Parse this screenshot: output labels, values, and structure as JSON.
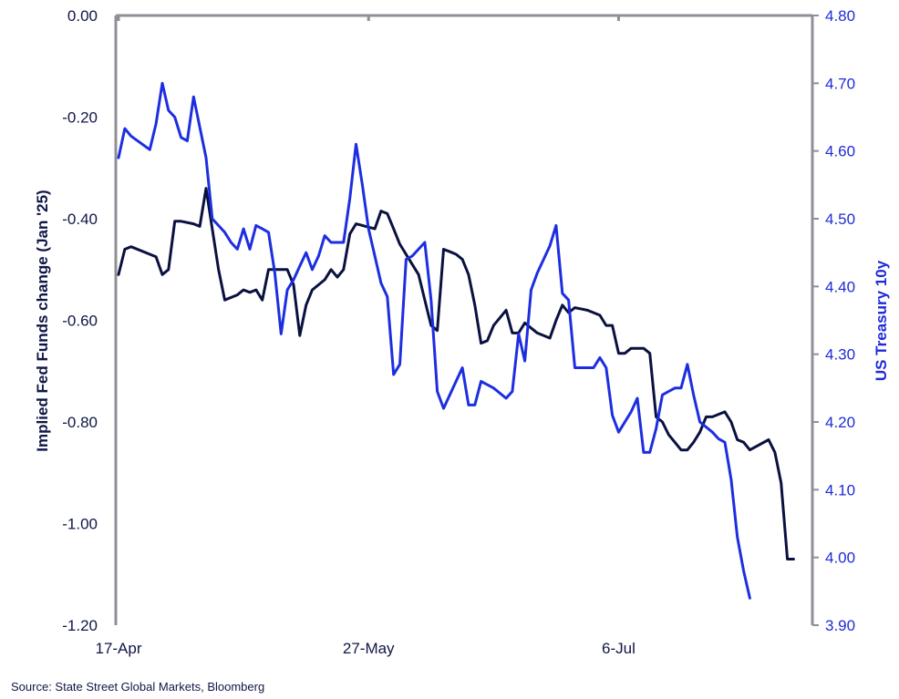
{
  "chart_data": {
    "type": "line",
    "title": "",
    "y_left_label": "Implied Fed Funds change (Jan '25)",
    "y_right_label": "US Treasury 10y",
    "y_left_range": [
      -1.2,
      0.0
    ],
    "y_right_range": [
      3.9,
      4.8
    ],
    "y_left_ticks": [
      "0.00",
      "-0.20",
      "-0.40",
      "-0.60",
      "-0.80",
      "-1.00",
      "-1.20"
    ],
    "y_right_ticks": [
      "4.80",
      "4.70",
      "4.60",
      "4.50",
      "4.40",
      "4.30",
      "4.20",
      "4.10",
      "4.00",
      "3.90"
    ],
    "x_ticks": [
      {
        "label": "17-Apr",
        "day": 0
      },
      {
        "label": "27-May",
        "day": 40
      },
      {
        "label": "6-Jul",
        "day": 80
      }
    ],
    "x_range_days": [
      0,
      111
    ],
    "grid": false,
    "colors": {
      "left_axis": "#0f1646",
      "right_axis": "#1f2bd8",
      "axis_line": "#8f8f98"
    },
    "series": [
      {
        "axis": "left",
        "color": "#0a1140",
        "points": [
          [
            0,
            -0.51
          ],
          [
            1,
            -0.46
          ],
          [
            2,
            -0.455
          ],
          [
            5,
            -0.47
          ],
          [
            6,
            -0.475
          ],
          [
            7,
            -0.51
          ],
          [
            8,
            -0.5
          ],
          [
            9,
            -0.405
          ],
          [
            10,
            -0.405
          ],
          [
            12,
            -0.41
          ],
          [
            13,
            -0.415
          ],
          [
            14,
            -0.34
          ],
          [
            15,
            -0.42
          ],
          [
            16,
            -0.5
          ],
          [
            17,
            -0.56
          ],
          [
            19,
            -0.55
          ],
          [
            20,
            -0.54
          ],
          [
            21,
            -0.545
          ],
          [
            22,
            -0.54
          ],
          [
            23,
            -0.56
          ],
          [
            24,
            -0.5
          ],
          [
            27,
            -0.5
          ],
          [
            28,
            -0.53
          ],
          [
            29,
            -0.63
          ],
          [
            30,
            -0.57
          ],
          [
            31,
            -0.54
          ],
          [
            33,
            -0.52
          ],
          [
            34,
            -0.5
          ],
          [
            35,
            -0.515
          ],
          [
            36,
            -0.5
          ],
          [
            37,
            -0.43
          ],
          [
            38,
            -0.41
          ],
          [
            41,
            -0.42
          ],
          [
            42,
            -0.385
          ],
          [
            43,
            -0.39
          ],
          [
            44,
            -0.42
          ],
          [
            45,
            -0.45
          ],
          [
            47,
            -0.49
          ],
          [
            48,
            -0.51
          ],
          [
            49,
            -0.56
          ],
          [
            50,
            -0.61
          ],
          [
            51,
            -0.62
          ],
          [
            52,
            -0.46
          ],
          [
            53,
            -0.465
          ],
          [
            54,
            -0.47
          ],
          [
            55,
            -0.48
          ],
          [
            56,
            -0.51
          ],
          [
            57,
            -0.57
          ],
          [
            58,
            -0.645
          ],
          [
            59,
            -0.64
          ],
          [
            60,
            -0.61
          ],
          [
            62,
            -0.58
          ],
          [
            63,
            -0.625
          ],
          [
            64,
            -0.625
          ],
          [
            65,
            -0.605
          ],
          [
            66,
            -0.615
          ],
          [
            67,
            -0.625
          ],
          [
            69,
            -0.635
          ],
          [
            70,
            -0.6
          ],
          [
            71,
            -0.57
          ],
          [
            72,
            -0.585
          ],
          [
            73,
            -0.575
          ],
          [
            75,
            -0.58
          ],
          [
            77,
            -0.59
          ],
          [
            78,
            -0.61
          ],
          [
            79,
            -0.61
          ],
          [
            80,
            -0.665
          ],
          [
            81,
            -0.665
          ],
          [
            82,
            -0.655
          ],
          [
            84,
            -0.655
          ],
          [
            85,
            -0.665
          ],
          [
            86,
            -0.79
          ],
          [
            87,
            -0.8
          ],
          [
            88,
            -0.825
          ],
          [
            89,
            -0.84
          ],
          [
            90,
            -0.855
          ],
          [
            91,
            -0.855
          ],
          [
            92,
            -0.84
          ],
          [
            93,
            -0.82
          ],
          [
            94,
            -0.79
          ],
          [
            95,
            -0.79
          ],
          [
            97,
            -0.78
          ],
          [
            98,
            -0.8
          ],
          [
            99,
            -0.835
          ],
          [
            100,
            -0.84
          ],
          [
            101,
            -0.855
          ],
          [
            104,
            -0.835
          ],
          [
            105,
            -0.86
          ],
          [
            106,
            -0.92
          ],
          [
            107,
            -1.07
          ],
          [
            108,
            -1.07
          ]
        ]
      },
      {
        "axis": "right",
        "color": "#1d2ee0",
        "points": [
          [
            0,
            4.59
          ],
          [
            1,
            4.633
          ],
          [
            2,
            4.622
          ],
          [
            5,
            4.602
          ],
          [
            6,
            4.64
          ],
          [
            7,
            4.7
          ],
          [
            8,
            4.66
          ],
          [
            9,
            4.65
          ],
          [
            10,
            4.62
          ],
          [
            11,
            4.615
          ],
          [
            12,
            4.68
          ],
          [
            14,
            4.59
          ],
          [
            15,
            4.5
          ],
          [
            17,
            4.48
          ],
          [
            18,
            4.465
          ],
          [
            19,
            4.455
          ],
          [
            20,
            4.485
          ],
          [
            21,
            4.455
          ],
          [
            22,
            4.49
          ],
          [
            23,
            4.485
          ],
          [
            24,
            4.48
          ],
          [
            25,
            4.42
          ],
          [
            26,
            4.33
          ],
          [
            27,
            4.395
          ],
          [
            28,
            4.41
          ],
          [
            29,
            4.43
          ],
          [
            30,
            4.45
          ],
          [
            31,
            4.425
          ],
          [
            32,
            4.445
          ],
          [
            33,
            4.475
          ],
          [
            34,
            4.465
          ],
          [
            35,
            4.465
          ],
          [
            36,
            4.465
          ],
          [
            37,
            4.53
          ],
          [
            38,
            4.61
          ],
          [
            39,
            4.55
          ],
          [
            40,
            4.485
          ],
          [
            41,
            4.445
          ],
          [
            42,
            4.405
          ],
          [
            43,
            4.385
          ],
          [
            44,
            4.27
          ],
          [
            45,
            4.285
          ],
          [
            46,
            4.44
          ],
          [
            47,
            4.445
          ],
          [
            48,
            4.455
          ],
          [
            49,
            4.465
          ],
          [
            50,
            4.38
          ],
          [
            51,
            4.245
          ],
          [
            52,
            4.22
          ],
          [
            54,
            4.26
          ],
          [
            55,
            4.28
          ],
          [
            56,
            4.225
          ],
          [
            57,
            4.225
          ],
          [
            58,
            4.26
          ],
          [
            60,
            4.25
          ],
          [
            62,
            4.235
          ],
          [
            63,
            4.245
          ],
          [
            64,
            4.33
          ],
          [
            65,
            4.29
          ],
          [
            66,
            4.395
          ],
          [
            67,
            4.42
          ],
          [
            69,
            4.46
          ],
          [
            70,
            4.49
          ],
          [
            71,
            4.39
          ],
          [
            72,
            4.38
          ],
          [
            73,
            4.28
          ],
          [
            74,
            4.28
          ],
          [
            76,
            4.28
          ],
          [
            77,
            4.295
          ],
          [
            78,
            4.28
          ],
          [
            79,
            4.21
          ],
          [
            80,
            4.185
          ],
          [
            82,
            4.215
          ],
          [
            83,
            4.235
          ],
          [
            84,
            4.155
          ],
          [
            85,
            4.155
          ],
          [
            86,
            4.19
          ],
          [
            87,
            4.24
          ],
          [
            88,
            4.245
          ],
          [
            89,
            4.25
          ],
          [
            90,
            4.25
          ],
          [
            91,
            4.285
          ],
          [
            92,
            4.24
          ],
          [
            93,
            4.2
          ],
          [
            95,
            4.185
          ],
          [
            96,
            4.175
          ],
          [
            97,
            4.17
          ],
          [
            98,
            4.115
          ],
          [
            99,
            4.03
          ],
          [
            100,
            3.98
          ],
          [
            101,
            3.94
          ]
        ]
      }
    ]
  },
  "source": "Source: State Street Global Markets, Bloomberg"
}
